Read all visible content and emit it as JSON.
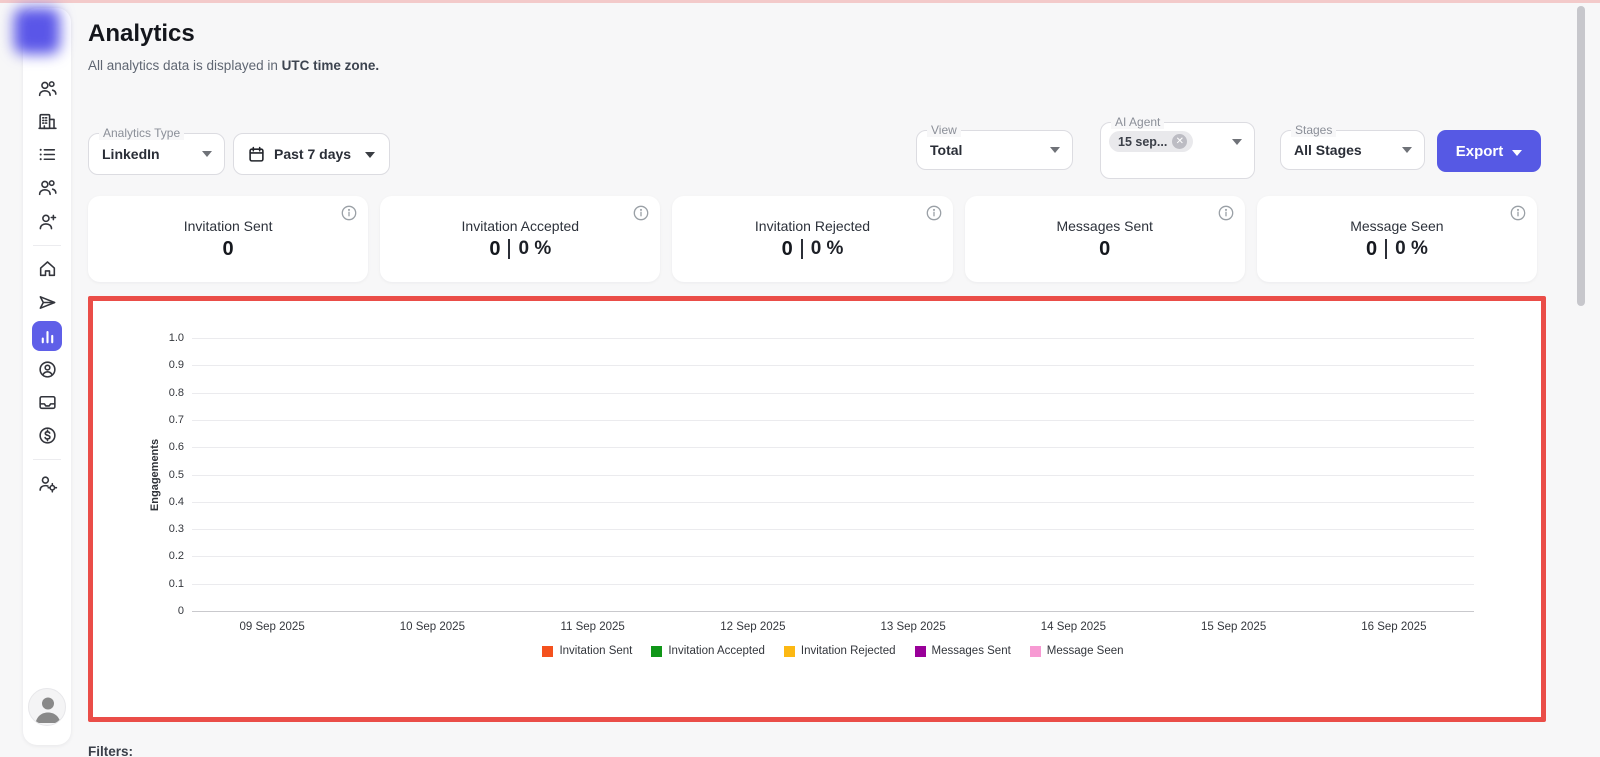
{
  "app": {
    "top_accent_color": "#f3caca",
    "background_color": "#f7f7f8"
  },
  "sidebar": {
    "logo": "blurred-brand-logo",
    "active_color": "#5f5fe8",
    "items": [
      {
        "icon": "users-icon",
        "active": false
      },
      {
        "icon": "building-icon",
        "active": false
      },
      {
        "icon": "list-icon",
        "active": false
      },
      {
        "icon": "users-icon",
        "active": false
      },
      {
        "icon": "user-plus-icon",
        "active": false
      },
      {
        "icon": "home-icon",
        "active": false
      },
      {
        "icon": "send-icon",
        "active": false
      },
      {
        "icon": "bar-chart-icon",
        "active": true
      },
      {
        "icon": "user-circle-icon",
        "active": false
      },
      {
        "icon": "inbox-icon",
        "active": false
      },
      {
        "icon": "dollar-icon",
        "active": false
      },
      {
        "icon": "user-gear-icon",
        "active": false
      }
    ],
    "avatar": "user-avatar"
  },
  "header": {
    "title": "Analytics",
    "subtitle": "All analytics data is displayed in ",
    "subtitle_emphasis": "UTC time zone."
  },
  "filters": {
    "analytics_type": {
      "label": "Analytics Type",
      "value": "LinkedIn"
    },
    "date_range": {
      "value": "Past 7 days"
    },
    "view": {
      "label": "View",
      "value": "Total"
    },
    "ai_agent": {
      "label": "AI Agent",
      "chip": "15 sep..."
    },
    "stages": {
      "label": "Stages",
      "value": "All Stages"
    },
    "export": {
      "label": "Export",
      "color": "#5659e4"
    }
  },
  "stat_cards": [
    {
      "label": "Invitation Sent",
      "value": "0",
      "percent": ""
    },
    {
      "label": "Invitation Accepted",
      "value": "0",
      "percent": "0 %"
    },
    {
      "label": "Invitation Rejected",
      "value": "0",
      "percent": "0 %"
    },
    {
      "label": "Messages Sent",
      "value": "0",
      "percent": ""
    },
    {
      "label": "Message Seen",
      "value": "0",
      "percent": "0 %"
    }
  ],
  "chart_data": {
    "type": "line",
    "title": "",
    "xlabel": "",
    "ylabel": "Engagements",
    "ylim": [
      0,
      1.0
    ],
    "yticks": [
      1.0,
      0.9,
      0.8,
      0.7,
      0.6,
      0.5,
      0.4,
      0.3,
      0.2,
      0.1,
      0
    ],
    "categories": [
      "09 Sep 2025",
      "10 Sep 2025",
      "11 Sep 2025",
      "12 Sep 2025",
      "13 Sep 2025",
      "14 Sep 2025",
      "15 Sep 2025",
      "16 Sep 2025"
    ],
    "series": [
      {
        "name": "Invitation Sent",
        "color": "#f4511e",
        "values": []
      },
      {
        "name": "Invitation Accepted",
        "color": "#109618",
        "values": []
      },
      {
        "name": "Invitation Rejected",
        "color": "#fcb813",
        "values": []
      },
      {
        "name": "Messages Sent",
        "color": "#990099",
        "values": []
      },
      {
        "name": "Message Seen",
        "color": "#f79ad3",
        "values": []
      }
    ],
    "legend_position": "bottom",
    "grid": true,
    "annotation": "chart is empty (no data plotted); region outlined with red highlight box"
  },
  "footer": {
    "filters_label": "Filters:"
  },
  "highlight": {
    "border_color": "#ea4d48"
  }
}
